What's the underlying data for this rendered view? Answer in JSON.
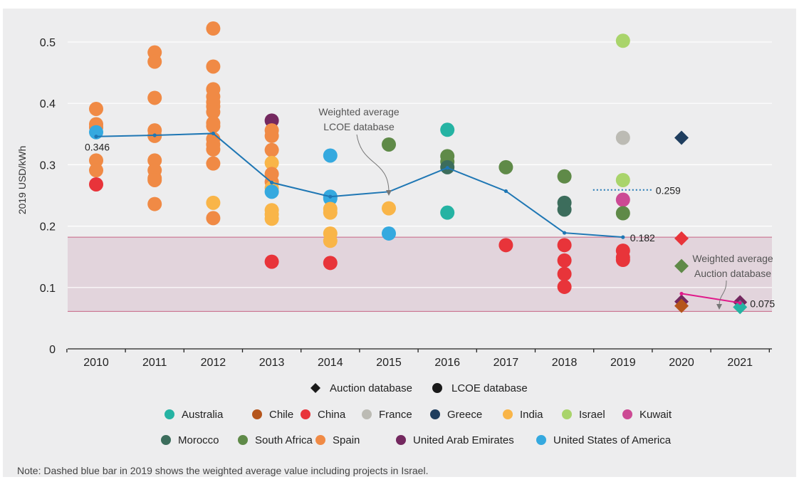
{
  "chart_data": {
    "type": "scatter",
    "ylabel": "2019 USD/kWh",
    "ylim": [
      0,
      0.55
    ],
    "yticks": [
      0,
      0.1,
      0.2,
      0.3,
      0.4,
      0.5
    ],
    "ytick_labels": [
      "0",
      "0.1",
      "0.2",
      "0.3",
      "0.4",
      "0.5"
    ],
    "categories": [
      "2010",
      "2011",
      "2012",
      "2013",
      "2014",
      "2015",
      "2016",
      "2017",
      "2018",
      "2019",
      "2020",
      "2021"
    ],
    "colors": {
      "Australia": "#25b3a3",
      "Chile": "#b5551c",
      "China": "#e8343a",
      "France": "#bcbbb4",
      "Greece": "#1f3e5f",
      "India": "#f9b548",
      "Israel": "#a9d46b",
      "Kuwait": "#cc4a94",
      "Morocco": "#3c6d5c",
      "South Africa": "#5f8a48",
      "Spain": "#f08a45",
      "United Arab Emirates": "#74285f",
      "United States of America": "#35a9df"
    },
    "shaded_band": {
      "from": 0.061,
      "to": 0.182,
      "color": "#e2d4dc",
      "line_color": "#c76485"
    },
    "lcoe_points": [
      {
        "x": "2010",
        "y": 0.391,
        "c": "Spain"
      },
      {
        "x": "2010",
        "y": 0.366,
        "c": "Spain"
      },
      {
        "x": "2010",
        "y": 0.361,
        "c": "Spain"
      },
      {
        "x": "2010",
        "y": 0.353,
        "c": "United States of America"
      },
      {
        "x": "2010",
        "y": 0.307,
        "c": "Spain"
      },
      {
        "x": "2010",
        "y": 0.291,
        "c": "Spain"
      },
      {
        "x": "2010",
        "y": 0.268,
        "c": "China"
      },
      {
        "x": "2011",
        "y": 0.483,
        "c": "Spain"
      },
      {
        "x": "2011",
        "y": 0.468,
        "c": "Spain"
      },
      {
        "x": "2011",
        "y": 0.409,
        "c": "Spain"
      },
      {
        "x": "2011",
        "y": 0.356,
        "c": "Spain"
      },
      {
        "x": "2011",
        "y": 0.347,
        "c": "Spain"
      },
      {
        "x": "2011",
        "y": 0.307,
        "c": "Spain"
      },
      {
        "x": "2011",
        "y": 0.291,
        "c": "Spain"
      },
      {
        "x": "2011",
        "y": 0.278,
        "c": "Spain"
      },
      {
        "x": "2011",
        "y": 0.275,
        "c": "Spain"
      },
      {
        "x": "2011",
        "y": 0.236,
        "c": "Spain"
      },
      {
        "x": "2012",
        "y": 0.522,
        "c": "Spain"
      },
      {
        "x": "2012",
        "y": 0.46,
        "c": "Spain"
      },
      {
        "x": "2012",
        "y": 0.423,
        "c": "Spain"
      },
      {
        "x": "2012",
        "y": 0.411,
        "c": "Spain"
      },
      {
        "x": "2012",
        "y": 0.402,
        "c": "Spain"
      },
      {
        "x": "2012",
        "y": 0.395,
        "c": "Spain"
      },
      {
        "x": "2012",
        "y": 0.386,
        "c": "Spain"
      },
      {
        "x": "2012",
        "y": 0.368,
        "c": "Spain"
      },
      {
        "x": "2012",
        "y": 0.363,
        "c": "Spain"
      },
      {
        "x": "2012",
        "y": 0.342,
        "c": "Spain"
      },
      {
        "x": "2012",
        "y": 0.333,
        "c": "Spain"
      },
      {
        "x": "2012",
        "y": 0.325,
        "c": "Spain"
      },
      {
        "x": "2012",
        "y": 0.302,
        "c": "Spain"
      },
      {
        "x": "2012",
        "y": 0.238,
        "c": "India"
      },
      {
        "x": "2012",
        "y": 0.213,
        "c": "Spain"
      },
      {
        "x": "2013",
        "y": 0.372,
        "c": "United Arab Emirates"
      },
      {
        "x": "2013",
        "y": 0.356,
        "c": "Spain"
      },
      {
        "x": "2013",
        "y": 0.347,
        "c": "Spain"
      },
      {
        "x": "2013",
        "y": 0.324,
        "c": "Spain"
      },
      {
        "x": "2013",
        "y": 0.303,
        "c": "India"
      },
      {
        "x": "2013",
        "y": 0.285,
        "c": "Spain"
      },
      {
        "x": "2013",
        "y": 0.272,
        "c": "Spain"
      },
      {
        "x": "2013",
        "y": 0.262,
        "c": "India"
      },
      {
        "x": "2013",
        "y": 0.256,
        "c": "United States of America"
      },
      {
        "x": "2013",
        "y": 0.226,
        "c": "India"
      },
      {
        "x": "2013",
        "y": 0.219,
        "c": "India"
      },
      {
        "x": "2013",
        "y": 0.212,
        "c": "India"
      },
      {
        "x": "2013",
        "y": 0.142,
        "c": "China"
      },
      {
        "x": "2014",
        "y": 0.315,
        "c": "United States of America"
      },
      {
        "x": "2014",
        "y": 0.248,
        "c": "United States of America"
      },
      {
        "x": "2014",
        "y": 0.245,
        "c": "United States of America"
      },
      {
        "x": "2014",
        "y": 0.228,
        "c": "India"
      },
      {
        "x": "2014",
        "y": 0.222,
        "c": "India"
      },
      {
        "x": "2014",
        "y": 0.188,
        "c": "India"
      },
      {
        "x": "2014",
        "y": 0.176,
        "c": "India"
      },
      {
        "x": "2014",
        "y": 0.14,
        "c": "China"
      },
      {
        "x": "2015",
        "y": 0.333,
        "c": "South Africa"
      },
      {
        "x": "2015",
        "y": 0.229,
        "c": "India"
      },
      {
        "x": "2015",
        "y": 0.188,
        "c": "United States of America"
      },
      {
        "x": "2016",
        "y": 0.357,
        "c": "Australia"
      },
      {
        "x": "2016",
        "y": 0.314,
        "c": "South Africa"
      },
      {
        "x": "2016",
        "y": 0.305,
        "c": "South Africa"
      },
      {
        "x": "2016",
        "y": 0.296,
        "c": "Morocco"
      },
      {
        "x": "2016",
        "y": 0.222,
        "c": "Australia"
      },
      {
        "x": "2017",
        "y": 0.296,
        "c": "South Africa"
      },
      {
        "x": "2017",
        "y": 0.169,
        "c": "China"
      },
      {
        "x": "2018",
        "y": 0.281,
        "c": "South Africa"
      },
      {
        "x": "2018",
        "y": 0.238,
        "c": "Morocco"
      },
      {
        "x": "2018",
        "y": 0.227,
        "c": "Morocco"
      },
      {
        "x": "2018",
        "y": 0.169,
        "c": "China"
      },
      {
        "x": "2018",
        "y": 0.144,
        "c": "China"
      },
      {
        "x": "2018",
        "y": 0.122,
        "c": "China"
      },
      {
        "x": "2018",
        "y": 0.101,
        "c": "China"
      },
      {
        "x": "2019",
        "y": 0.502,
        "c": "Israel"
      },
      {
        "x": "2019",
        "y": 0.344,
        "c": "France"
      },
      {
        "x": "2019",
        "y": 0.275,
        "c": "Israel"
      },
      {
        "x": "2019",
        "y": 0.243,
        "c": "Kuwait"
      },
      {
        "x": "2019",
        "y": 0.221,
        "c": "South Africa"
      },
      {
        "x": "2019",
        "y": 0.16,
        "c": "China"
      },
      {
        "x": "2019",
        "y": 0.149,
        "c": "China"
      },
      {
        "x": "2019",
        "y": 0.145,
        "c": "China"
      }
    ],
    "auction_points": [
      {
        "x": "2020",
        "y": 0.344,
        "c": "Greece"
      },
      {
        "x": "2020",
        "y": 0.18,
        "c": "China"
      },
      {
        "x": "2020",
        "y": 0.135,
        "c": "South Africa"
      },
      {
        "x": "2020",
        "y": 0.077,
        "c": "United Arab Emirates"
      },
      {
        "x": "2020",
        "y": 0.07,
        "c": "Chile"
      },
      {
        "x": "2021",
        "y": 0.076,
        "c": "United Arab Emirates"
      },
      {
        "x": "2021",
        "y": 0.068,
        "c": "Australia"
      }
    ],
    "weighted_average_lcoe": {
      "color": "#1f77b4",
      "x": [
        "2010",
        "2011",
        "2012",
        "2013",
        "2014",
        "2015",
        "2016",
        "2017",
        "2018",
        "2019"
      ],
      "y": [
        0.346,
        0.348,
        0.351,
        0.271,
        0.248,
        0.256,
        0.295,
        0.257,
        0.189,
        0.182
      ]
    },
    "weighted_average_auction": {
      "color": "#e0198a",
      "x": [
        "2020",
        "2021"
      ],
      "y": [
        0.09,
        0.075
      ]
    },
    "dashed_2019": {
      "y": 0.259,
      "color": "#1f77b4"
    },
    "value_labels": [
      {
        "text": "0.346",
        "x": "2010",
        "y": 0.346
      },
      {
        "text": "0.259",
        "x": "2019",
        "y": 0.259
      },
      {
        "text": "0.182",
        "x": "2019",
        "y": 0.182
      },
      {
        "text": "0.075",
        "x": "2021",
        "y": 0.075
      }
    ],
    "annotations": {
      "lcoe": [
        "Weighted average",
        "LCOE database"
      ],
      "auction": [
        "Weighted average",
        "Auction database"
      ]
    },
    "legend_markers": [
      "Auction database",
      "LCOE database"
    ],
    "legend_rows": [
      [
        "Australia",
        "Chile",
        "China",
        "France",
        "Greece",
        "India",
        "Israel",
        "Kuwait"
      ],
      [
        "Morocco",
        "South Africa",
        "Spain",
        "United Arab Emirates",
        "United States of America"
      ]
    ],
    "note": "Note: Dashed blue bar in 2019 shows the weighted average value including projects in Israel."
  }
}
